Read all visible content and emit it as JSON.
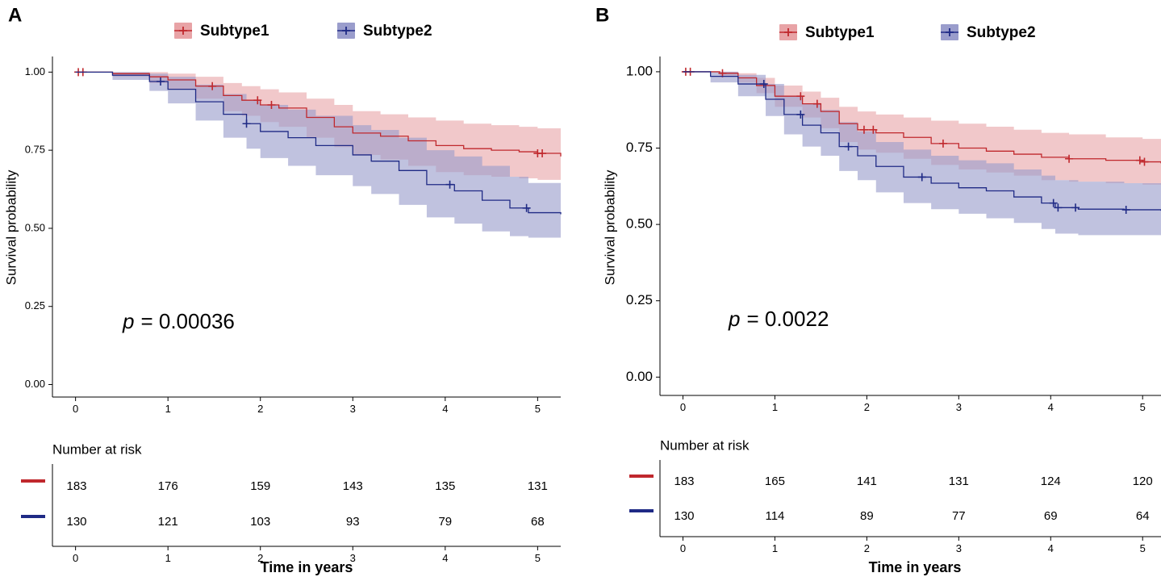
{
  "colors": {
    "subtype1_line": "#c0282d",
    "subtype1_band": "#e8a3a6",
    "subtype2_line": "#1f2a85",
    "subtype2_band": "#9a9dcc",
    "axis": "#000000"
  },
  "chart_data": [
    {
      "type": "line",
      "panel_label": "A",
      "legend": [
        "Subtype1",
        "Subtype2"
      ],
      "title": "",
      "xlabel": "Time in years",
      "ylabel": "Survival probability",
      "xlim": [
        -0.25,
        5.25
      ],
      "ylim": [
        -0.04,
        1.05
      ],
      "x_ticks": [
        "0",
        "1",
        "2",
        "3",
        "4",
        "5"
      ],
      "y_ticks": [
        "0.00",
        "0.25",
        "0.50",
        "0.75",
        "1.00"
      ],
      "pvalue_prefix": "p",
      "pvalue_text": "= 0.00036",
      "series": [
        {
          "name": "Subtype1",
          "x": [
            0,
            0.4,
            0.8,
            1.0,
            1.3,
            1.6,
            1.8,
            2.0,
            2.2,
            2.5,
            2.8,
            3.0,
            3.3,
            3.6,
            3.9,
            4.2,
            4.5,
            4.8,
            5.0,
            5.25
          ],
          "y": [
            1.0,
            0.995,
            0.985,
            0.975,
            0.955,
            0.925,
            0.91,
            0.895,
            0.885,
            0.855,
            0.825,
            0.805,
            0.795,
            0.78,
            0.765,
            0.755,
            0.75,
            0.745,
            0.74,
            0.73
          ],
          "lower": [
            1.0,
            0.985,
            0.965,
            0.945,
            0.915,
            0.875,
            0.86,
            0.84,
            0.825,
            0.79,
            0.76,
            0.735,
            0.72,
            0.7,
            0.68,
            0.67,
            0.665,
            0.66,
            0.655,
            0.645
          ],
          "upper": [
            1.0,
            1.0,
            1.0,
            0.995,
            0.985,
            0.965,
            0.955,
            0.945,
            0.935,
            0.915,
            0.895,
            0.875,
            0.865,
            0.855,
            0.845,
            0.835,
            0.83,
            0.825,
            0.82,
            0.81
          ],
          "censor_x": [
            0.03,
            0.08,
            1.48,
            1.97,
            2.12,
            5.0,
            5.05
          ],
          "at_risk": [
            "183",
            "176",
            "159",
            "143",
            "135",
            "131"
          ]
        },
        {
          "name": "Subtype2",
          "x": [
            0,
            0.4,
            0.8,
            1.0,
            1.3,
            1.6,
            1.85,
            2.0,
            2.3,
            2.6,
            3.0,
            3.2,
            3.5,
            3.8,
            4.1,
            4.4,
            4.7,
            4.9,
            5.25
          ],
          "y": [
            1.0,
            0.99,
            0.97,
            0.945,
            0.905,
            0.865,
            0.835,
            0.81,
            0.79,
            0.765,
            0.735,
            0.715,
            0.685,
            0.64,
            0.62,
            0.59,
            0.565,
            0.55,
            0.545
          ],
          "lower": [
            1.0,
            0.975,
            0.94,
            0.9,
            0.845,
            0.79,
            0.755,
            0.725,
            0.7,
            0.67,
            0.635,
            0.61,
            0.575,
            0.535,
            0.515,
            0.49,
            0.475,
            0.47,
            0.465
          ],
          "upper": [
            1.0,
            1.0,
            0.995,
            0.985,
            0.96,
            0.93,
            0.91,
            0.895,
            0.88,
            0.86,
            0.83,
            0.815,
            0.79,
            0.75,
            0.73,
            0.7,
            0.665,
            0.645,
            0.64
          ],
          "censor_x": [
            0.92,
            1.85,
            4.05,
            4.88
          ],
          "at_risk": [
            "130",
            "121",
            "103",
            "93",
            "79",
            "68"
          ]
        }
      ],
      "risk_table_title": "Number at risk"
    },
    {
      "type": "line",
      "panel_label": "B",
      "legend": [
        "Subtype1",
        "Subtype2"
      ],
      "title": "",
      "xlabel": "Time in years",
      "ylabel": "Survival probability",
      "xlim": [
        -0.25,
        5.2
      ],
      "ylim": [
        -0.06,
        1.05
      ],
      "x_ticks": [
        "0",
        "1",
        "2",
        "3",
        "4",
        "5"
      ],
      "y_ticks": [
        "0.00",
        "0.25",
        "0.50",
        "0.75",
        "1.00"
      ],
      "pvalue_prefix": "p",
      "pvalue_text": "= 0.0022",
      "series": [
        {
          "name": "Subtype1",
          "x": [
            0,
            0.4,
            0.6,
            0.8,
            1.0,
            1.3,
            1.5,
            1.7,
            1.9,
            2.1,
            2.4,
            2.7,
            3.0,
            3.3,
            3.6,
            3.9,
            4.2,
            4.6,
            5.0,
            5.2
          ],
          "y": [
            1.0,
            0.995,
            0.98,
            0.955,
            0.92,
            0.895,
            0.87,
            0.83,
            0.81,
            0.8,
            0.785,
            0.765,
            0.75,
            0.74,
            0.73,
            0.72,
            0.715,
            0.71,
            0.705,
            0.7
          ],
          "lower": [
            1.0,
            0.985,
            0.965,
            0.93,
            0.885,
            0.85,
            0.815,
            0.77,
            0.745,
            0.735,
            0.715,
            0.695,
            0.68,
            0.67,
            0.66,
            0.645,
            0.64,
            0.635,
            0.63,
            0.625
          ],
          "upper": [
            1.0,
            1.0,
            0.995,
            0.98,
            0.955,
            0.935,
            0.915,
            0.885,
            0.87,
            0.86,
            0.85,
            0.84,
            0.83,
            0.82,
            0.81,
            0.8,
            0.795,
            0.785,
            0.78,
            0.775
          ],
          "censor_x": [
            0.03,
            0.08,
            0.43,
            1.28,
            1.46,
            1.97,
            2.07,
            2.83,
            4.2,
            4.97,
            5.02
          ],
          "at_risk": [
            "183",
            "165",
            "141",
            "131",
            "124",
            "120"
          ]
        },
        {
          "name": "Subtype2",
          "x": [
            0,
            0.3,
            0.6,
            0.9,
            1.1,
            1.3,
            1.5,
            1.7,
            1.9,
            2.1,
            2.4,
            2.7,
            3.0,
            3.3,
            3.6,
            3.9,
            4.05,
            4.3,
            4.8,
            5.2
          ],
          "y": [
            1.0,
            0.985,
            0.96,
            0.91,
            0.86,
            0.825,
            0.8,
            0.755,
            0.725,
            0.69,
            0.655,
            0.635,
            0.62,
            0.61,
            0.59,
            0.57,
            0.555,
            0.55,
            0.548,
            0.545
          ],
          "lower": [
            1.0,
            0.965,
            0.92,
            0.855,
            0.795,
            0.755,
            0.725,
            0.675,
            0.645,
            0.605,
            0.57,
            0.55,
            0.535,
            0.52,
            0.505,
            0.485,
            0.47,
            0.465,
            0.465,
            0.465
          ],
          "upper": [
            1.0,
            1.0,
            0.99,
            0.96,
            0.92,
            0.895,
            0.875,
            0.835,
            0.805,
            0.77,
            0.745,
            0.725,
            0.71,
            0.7,
            0.68,
            0.66,
            0.645,
            0.64,
            0.635,
            0.635
          ],
          "censor_x": [
            0.88,
            1.28,
            1.8,
            2.6,
            4.03,
            4.08,
            4.27,
            4.82
          ],
          "at_risk": [
            "130",
            "114",
            "89",
            "77",
            "69",
            "64"
          ]
        }
      ],
      "risk_table_title": "Number at risk"
    }
  ]
}
